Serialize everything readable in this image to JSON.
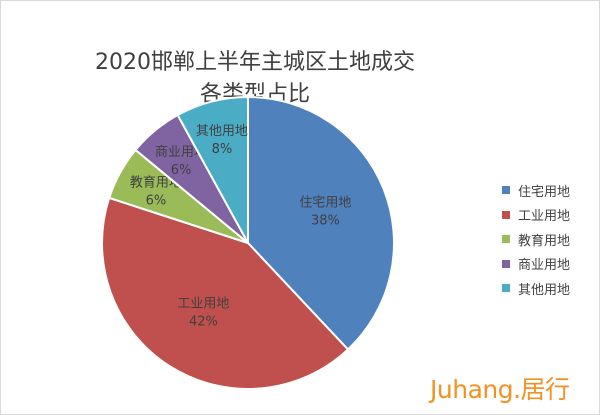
{
  "chart_data": {
    "type": "pie",
    "title": "2020邯郸上半年主城区土地成交",
    "subtitle": "各类型占比",
    "slices": [
      {
        "name": "住宅用地",
        "value": 38,
        "label": "38%",
        "color": "#4f81bd"
      },
      {
        "name": "工业用地",
        "value": 42,
        "label": "42%",
        "color": "#c0504d"
      },
      {
        "name": "教育用地",
        "value": 6,
        "label": "6%",
        "color": "#9bbb59"
      },
      {
        "name": "商业用地",
        "value": 6,
        "label": "6%",
        "color": "#8064a2"
      },
      {
        "name": "其他用地",
        "value": 8,
        "label": "8%",
        "color": "#4bacc6"
      }
    ],
    "legend_position": "right"
  },
  "watermark": {
    "text": "Juhang.居行",
    "color": "#f39224"
  }
}
